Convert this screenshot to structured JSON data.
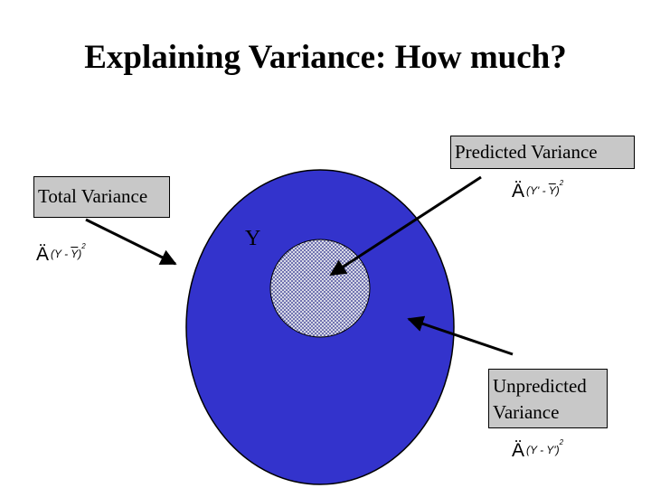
{
  "title": "Explaining Variance: How much?",
  "labels": {
    "total": "Total Variance",
    "predicted": "Predicted Variance",
    "unpredicted": "Unpredicted Variance",
    "y": "Y"
  },
  "formulas": {
    "total": {
      "symbol": "Ä",
      "y": "Y",
      "minus": "-",
      "mean": "Y",
      "square": "2"
    },
    "predicted": {
      "symbol": "Ä",
      "y": "Y'",
      "minus": "-",
      "mean": "Y",
      "square": "2"
    },
    "unpredicted": {
      "symbol": "Ä",
      "y": "Y",
      "minus": "-",
      "mean": "Y'",
      "square": "2"
    }
  },
  "colors": {
    "outer_circle": "#3333cc",
    "inner_circle": "#d7d8e6",
    "dots": "#2a2e8c",
    "label_box": "#c8c8c8"
  }
}
